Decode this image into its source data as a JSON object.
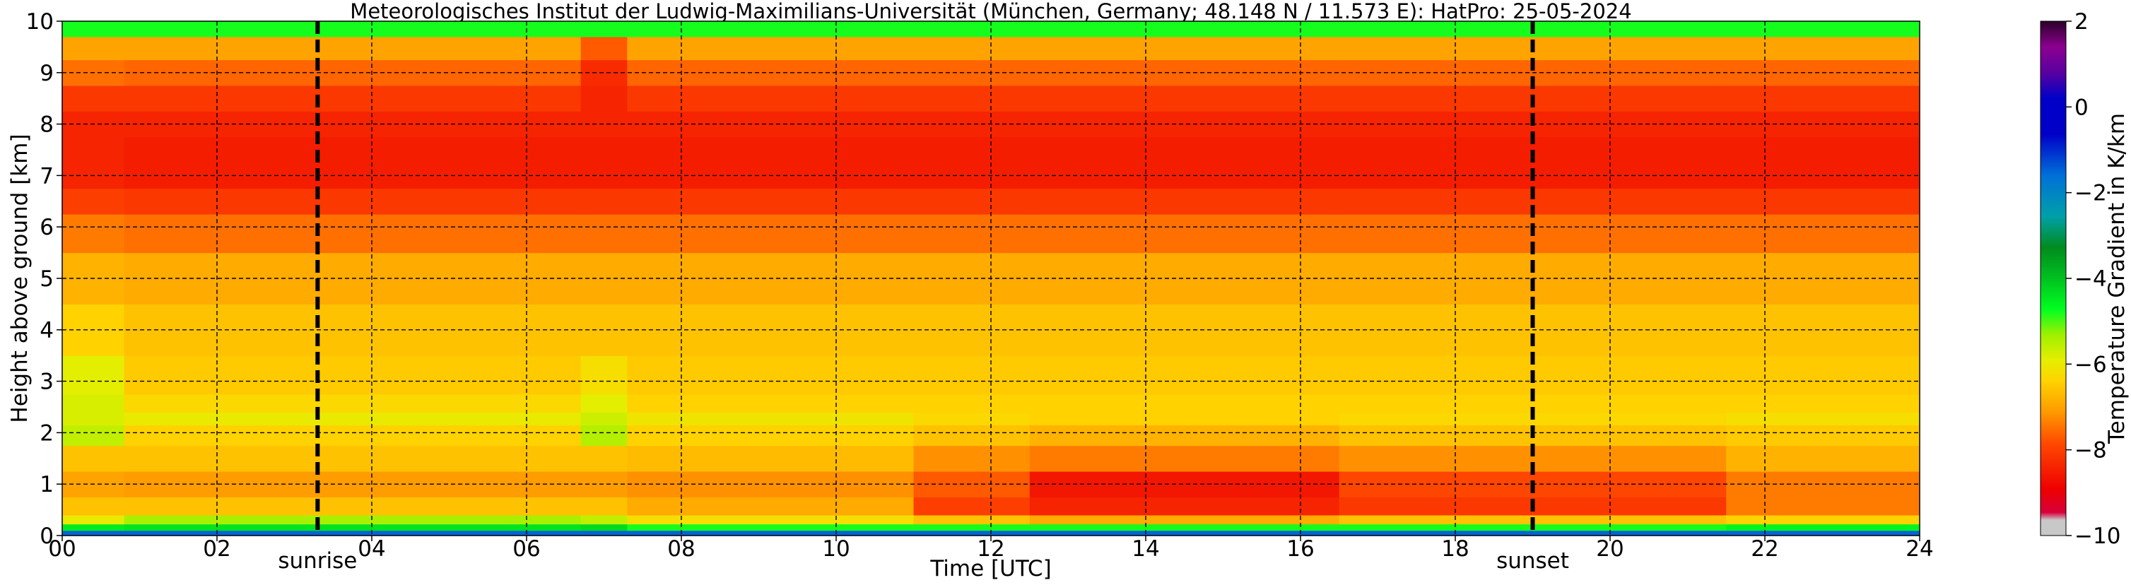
{
  "chart_data": {
    "type": "heatmap",
    "title": "Meteorologisches Institut der Ludwig-Maximilians-Universität (München, Germany; 48.148 N / 11.573 E):    HatPro: 25-05-2024",
    "xlabel": "Time [UTC]",
    "ylabel": "Height above ground [km]",
    "xlim": [
      0,
      24
    ],
    "ylim": [
      0,
      10
    ],
    "x_ticks": [
      0,
      2,
      4,
      6,
      8,
      10,
      12,
      14,
      16,
      18,
      20,
      22,
      24
    ],
    "x_tick_labels": [
      "00",
      "02",
      "04",
      "06",
      "08",
      "10",
      "12",
      "14",
      "16",
      "18",
      "20",
      "22",
      "24"
    ],
    "y_ticks": [
      0,
      1,
      2,
      3,
      4,
      5,
      6,
      7,
      8,
      9,
      10
    ],
    "y_tick_labels": [
      "0",
      "1",
      "2",
      "3",
      "4",
      "5",
      "6",
      "7",
      "8",
      "9",
      "10"
    ],
    "grid": true,
    "colorbar": {
      "label": "Temperature Gradient in K/km",
      "range": [
        -10,
        2
      ],
      "ticks": [
        2,
        0,
        -2,
        -4,
        -6,
        -8,
        -10
      ],
      "tick_labels": [
        "2",
        "0",
        "−2",
        "−4",
        "−6",
        "−8",
        "−10"
      ],
      "colors": [
        "#c8c8c8",
        "#d8003a",
        "#ee0000",
        "#ff4a00",
        "#ff9a00",
        "#ffd200",
        "#e6ee00",
        "#a0f000",
        "#00ff20",
        "#00c020",
        "#008c1e",
        "#00a0a8",
        "#0070d8",
        "#0000c8",
        "#5a00a0",
        "#8c0090",
        "#2a0028"
      ]
    },
    "events": [
      {
        "label": "sunrise",
        "x": 3.3
      },
      {
        "label": "sunset",
        "x": 19.0
      }
    ],
    "height_profile_km": [
      0.05,
      0.15,
      0.3,
      0.5,
      1.0,
      1.5,
      2.0,
      2.3,
      2.5,
      3.0,
      4.0,
      5.0,
      6.0,
      6.5,
      7.0,
      7.5,
      8.0,
      8.5,
      9.0,
      9.5,
      9.9
    ],
    "time_segments_h": [
      {
        "t0": 0.0,
        "t1": 0.8,
        "gradient_K_per_km": [
          -1.5,
          -4.5,
          -6.0,
          -6.6,
          -7.0,
          -6.6,
          -5.6,
          -5.8,
          -5.8,
          -5.9,
          -6.4,
          -6.8,
          -7.4,
          -8.0,
          -8.4,
          -8.4,
          -8.4,
          -8.1,
          -7.5,
          -7.0,
          -4.8
        ]
      },
      {
        "t0": 0.8,
        "t1": 6.7,
        "gradient_K_per_km": [
          -1.5,
          -4.4,
          -5.4,
          -6.6,
          -7.1,
          -6.6,
          -6.4,
          -6.0,
          -6.3,
          -6.5,
          -6.6,
          -6.9,
          -7.5,
          -8.1,
          -8.5,
          -8.5,
          -8.4,
          -8.1,
          -7.6,
          -7.0,
          -4.8
        ]
      },
      {
        "t0": 6.7,
        "t1": 7.3,
        "gradient_K_per_km": [
          -1.5,
          -4.3,
          -5.6,
          -6.6,
          -7.1,
          -6.6,
          -5.5,
          -5.7,
          -5.9,
          -6.2,
          -6.6,
          -6.9,
          -7.5,
          -8.1,
          -8.5,
          -8.5,
          -8.4,
          -8.4,
          -8.3,
          -7.7,
          -4.8
        ]
      },
      {
        "t0": 7.3,
        "t1": 11.0,
        "gradient_K_per_km": [
          -1.5,
          -4.8,
          -6.2,
          -6.9,
          -7.2,
          -6.7,
          -6.4,
          -6.1,
          -6.4,
          -6.5,
          -6.6,
          -6.9,
          -7.5,
          -8.1,
          -8.5,
          -8.5,
          -8.4,
          -8.1,
          -7.6,
          -7.0,
          -4.8
        ]
      },
      {
        "t0": 11.0,
        "t1": 12.5,
        "gradient_K_per_km": [
          -1.5,
          -4.8,
          -6.6,
          -8.0,
          -7.7,
          -7.2,
          -6.6,
          -6.3,
          -6.4,
          -6.5,
          -6.6,
          -6.9,
          -7.5,
          -8.1,
          -8.5,
          -8.5,
          -8.4,
          -8.1,
          -7.6,
          -7.0,
          -4.8
        ]
      },
      {
        "t0": 12.5,
        "t1": 16.5,
        "gradient_K_per_km": [
          -1.5,
          -4.8,
          -6.9,
          -8.4,
          -8.6,
          -7.4,
          -6.8,
          -6.4,
          -6.4,
          -6.5,
          -6.6,
          -6.9,
          -7.5,
          -8.1,
          -8.5,
          -8.5,
          -8.4,
          -8.1,
          -7.6,
          -7.0,
          -4.8
        ]
      },
      {
        "t0": 16.5,
        "t1": 21.5,
        "gradient_K_per_km": [
          -1.5,
          -4.8,
          -6.6,
          -8.1,
          -7.9,
          -7.2,
          -6.6,
          -6.3,
          -6.4,
          -6.5,
          -6.6,
          -6.9,
          -7.5,
          -8.1,
          -8.5,
          -8.5,
          -8.4,
          -8.1,
          -7.6,
          -7.0,
          -4.8
        ]
      },
      {
        "t0": 21.5,
        "t1": 24.0,
        "gradient_K_per_km": [
          -1.5,
          -4.6,
          -6.4,
          -7.4,
          -7.4,
          -6.8,
          -6.5,
          -6.2,
          -6.4,
          -6.5,
          -6.6,
          -6.9,
          -7.5,
          -8.1,
          -8.5,
          -8.5,
          -8.4,
          -8.1,
          -7.6,
          -7.0,
          -4.8
        ]
      }
    ]
  }
}
